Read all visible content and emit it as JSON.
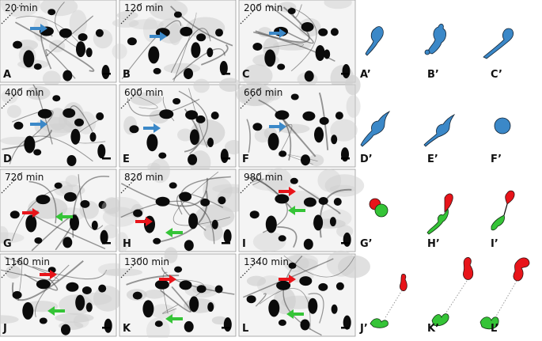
{
  "figure": {
    "panels": [
      {
        "label": "A",
        "time": "20 min",
        "arrows": [
          "blue"
        ]
      },
      {
        "label": "B",
        "time": "120 min",
        "arrows": [
          "blue"
        ]
      },
      {
        "label": "C",
        "time": "200 min",
        "arrows": [
          "blue"
        ]
      },
      {
        "label": "D",
        "time": "400 min",
        "arrows": [
          "blue"
        ]
      },
      {
        "label": "E",
        "time": "600 min",
        "arrows": [
          "blue"
        ]
      },
      {
        "label": "F",
        "time": "660 min",
        "arrows": [
          "blue"
        ]
      },
      {
        "label": "G",
        "time": "720 min",
        "arrows": [
          "red",
          "green"
        ]
      },
      {
        "label": "H",
        "time": "820 min",
        "arrows": [
          "red",
          "green"
        ]
      },
      {
        "label": "I",
        "time": "980 min",
        "arrows": [
          "red",
          "green"
        ]
      },
      {
        "label": "J",
        "time": "1160 min",
        "arrows": [
          "red",
          "green"
        ]
      },
      {
        "label": "K",
        "time": "1300 min",
        "arrows": [
          "red",
          "green"
        ]
      },
      {
        "label": "L",
        "time": "1340 min",
        "arrows": [
          "red",
          "green"
        ]
      }
    ],
    "schematics": [
      "A’",
      "B’",
      "C’",
      "D’",
      "E’",
      "F’",
      "G’",
      "H’",
      "I’",
      "J’",
      "K’",
      "L’"
    ],
    "colors": {
      "blue": "#3b88c8",
      "red": "#e8141a",
      "green": "#35c437",
      "black": "#000000"
    }
  }
}
